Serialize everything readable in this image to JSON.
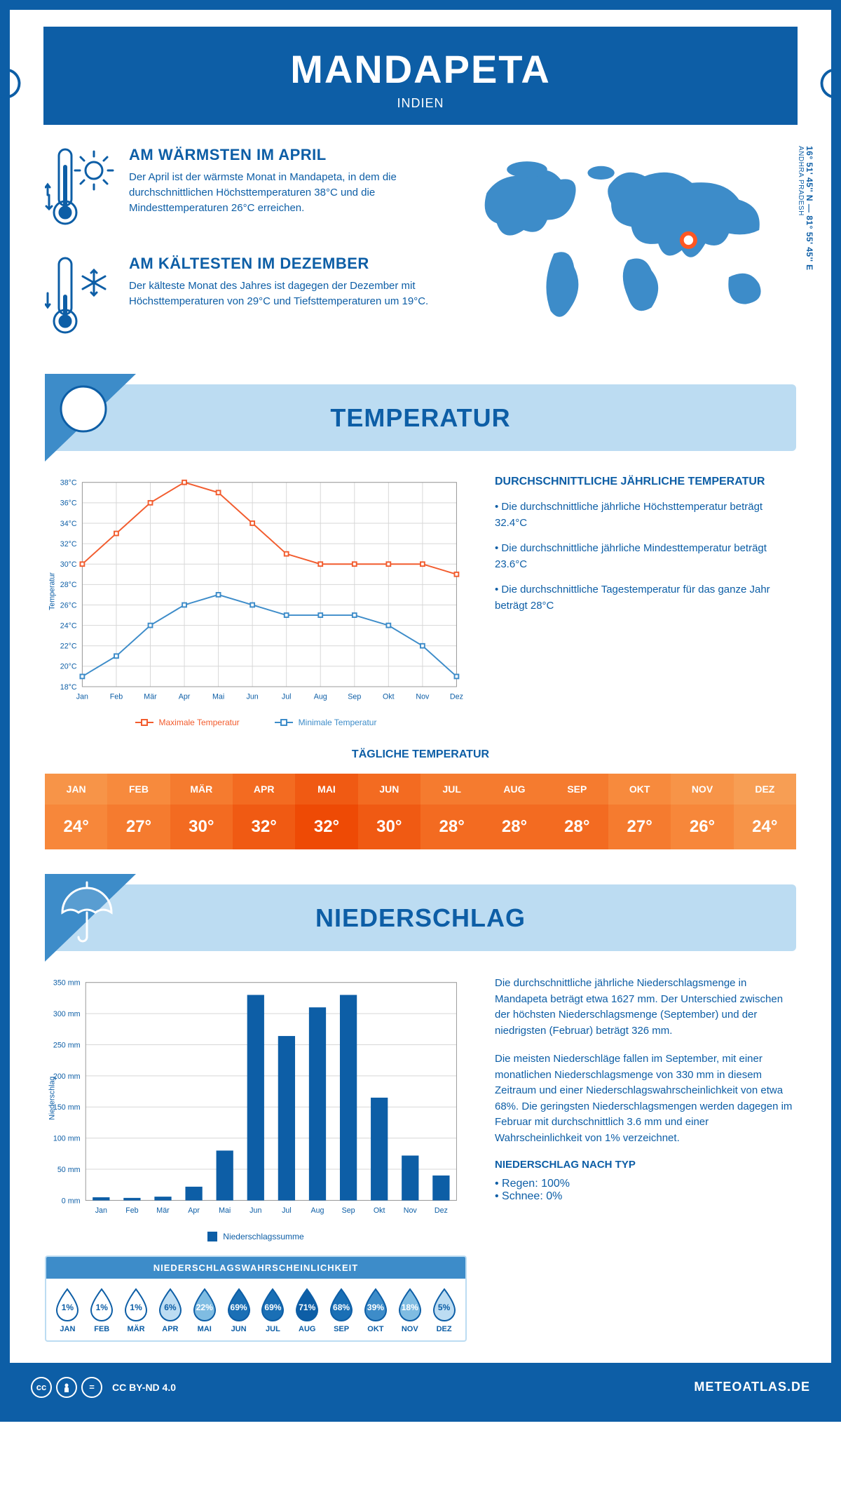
{
  "header": {
    "title": "MANDAPETA",
    "subtitle": "INDIEN"
  },
  "coords": "16° 51' 45'' N — 81° 55' 45'' E",
  "region": "ANDHRA PRADESH",
  "facts": {
    "warm": {
      "title": "AM WÄRMSTEN IM APRIL",
      "text": "Der April ist der wärmste Monat in Mandapeta, in dem die durchschnittlichen Höchsttemperaturen 38°C und die Mindesttemperaturen 26°C erreichen."
    },
    "cold": {
      "title": "AM KÄLTESTEN IM DEZEMBER",
      "text": "Der kälteste Monat des Jahres ist dagegen der Dezember mit Höchsttemperaturen von 29°C und Tiefsttemperaturen um 19°C."
    }
  },
  "sections": {
    "temperature": "TEMPERATUR",
    "precipitation": "NIEDERSCHLAG"
  },
  "temp_chart": {
    "type": "line",
    "months": [
      "Jan",
      "Feb",
      "Mär",
      "Apr",
      "Mai",
      "Jun",
      "Jul",
      "Aug",
      "Sep",
      "Okt",
      "Nov",
      "Dez"
    ],
    "max_series": [
      30,
      33,
      36,
      38,
      37,
      34,
      31,
      30,
      30,
      30,
      30,
      29
    ],
    "min_series": [
      19,
      21,
      24,
      26,
      27,
      26,
      25,
      25,
      25,
      24,
      22,
      19
    ],
    "max_color": "#f25c2e",
    "min_color": "#3d8cc9",
    "ylim": [
      18,
      38
    ],
    "ytick_step": 2,
    "grid_color": "#d7d7d7",
    "background_color": "#ffffff",
    "ylabel": "Temperatur",
    "legend_max": "Maximale Temperatur",
    "legend_min": "Minimale Temperatur",
    "label_fontsize": 11
  },
  "temp_info": {
    "heading": "DURCHSCHNITTLICHE JÄHRLICHE TEMPERATUR",
    "b1": "• Die durchschnittliche jährliche Höchsttemperatur beträgt 32.4°C",
    "b2": "• Die durchschnittliche jährliche Mindesttemperatur beträgt 23.6°C",
    "b3": "• Die durchschnittliche Tagestemperatur für das ganze Jahr beträgt 28°C"
  },
  "daily_temp": {
    "title": "TÄGLICHE TEMPERATUR",
    "months": [
      "JAN",
      "FEB",
      "MÄR",
      "APR",
      "MAI",
      "JUN",
      "JUL",
      "AUG",
      "SEP",
      "OKT",
      "NOV",
      "DEZ"
    ],
    "values": [
      "24°",
      "27°",
      "30°",
      "32°",
      "32°",
      "30°",
      "28°",
      "28°",
      "28°",
      "27°",
      "26°",
      "24°"
    ],
    "head_colors": [
      "#f79448",
      "#f78a3d",
      "#f57b2f",
      "#f36b21",
      "#f05a13",
      "#f36b21",
      "#f57b2f",
      "#f57b2f",
      "#f57b2f",
      "#f78a3d",
      "#f79448",
      "#f79e54"
    ],
    "val_colors": [
      "#f7873a",
      "#f57b2f",
      "#f36b21",
      "#f05a13",
      "#ee4a05",
      "#f05a13",
      "#f36b21",
      "#f36b21",
      "#f36b21",
      "#f57b2f",
      "#f7873a",
      "#f79448"
    ]
  },
  "precip_chart": {
    "type": "bar",
    "months": [
      "Jan",
      "Feb",
      "Mär",
      "Apr",
      "Mai",
      "Jun",
      "Jul",
      "Aug",
      "Sep",
      "Okt",
      "Nov",
      "Dez"
    ],
    "values": [
      5,
      4,
      6,
      22,
      80,
      330,
      264,
      310,
      330,
      165,
      72,
      40
    ],
    "bar_color": "#0d5ea6",
    "ylim": [
      0,
      350
    ],
    "ytick_step": 50,
    "grid_color": "#d7d7d7",
    "ylabel": "Niederschlag",
    "legend": "Niederschlagssumme",
    "label_fontsize": 11
  },
  "precip_text": {
    "p1": "Die durchschnittliche jährliche Niederschlagsmenge in Mandapeta beträgt etwa 1627 mm. Der Unterschied zwischen der höchsten Niederschlagsmenge (September) und der niedrigsten (Februar) beträgt 326 mm.",
    "p2": "Die meisten Niederschläge fallen im September, mit einer monatlichen Niederschlagsmenge von 330 mm in diesem Zeitraum und einer Niederschlagswahrscheinlichkeit von etwa 68%. Die geringsten Niederschlagsmengen werden dagegen im Februar mit durchschnittlich 3.6 mm und einer Wahrscheinlichkeit von 1% verzeichnet.",
    "type_heading": "NIEDERSCHLAG NACH TYP",
    "rain": "• Regen: 100%",
    "snow": "• Schnee: 0%"
  },
  "prob": {
    "title": "NIEDERSCHLAGSWAHRSCHEINLICHKEIT",
    "months": [
      "JAN",
      "FEB",
      "MÄR",
      "APR",
      "MAI",
      "JUN",
      "JUL",
      "AUG",
      "SEP",
      "OKT",
      "NOV",
      "DEZ"
    ],
    "values": [
      "1%",
      "1%",
      "1%",
      "6%",
      "22%",
      "69%",
      "69%",
      "71%",
      "68%",
      "39%",
      "18%",
      "5%"
    ],
    "fills": [
      "#ffffff",
      "#ffffff",
      "#ffffff",
      "#bcdcf2",
      "#7fbce2",
      "#1a6fb5",
      "#1a6fb5",
      "#0d5ea6",
      "#1a6fb5",
      "#3d8cc9",
      "#7fbce2",
      "#bcdcf2"
    ],
    "text_dark": [
      true,
      true,
      true,
      true,
      false,
      false,
      false,
      false,
      false,
      false,
      false,
      true
    ]
  },
  "footer": {
    "license": "CC BY-ND 4.0",
    "brand": "METEOATLAS.DE"
  },
  "colors": {
    "primary": "#0d5ea6",
    "light_blue": "#bcdcf2",
    "mid_blue": "#3d8cc9",
    "map_fill": "#3d8cc9",
    "marker": "#ff5722"
  }
}
